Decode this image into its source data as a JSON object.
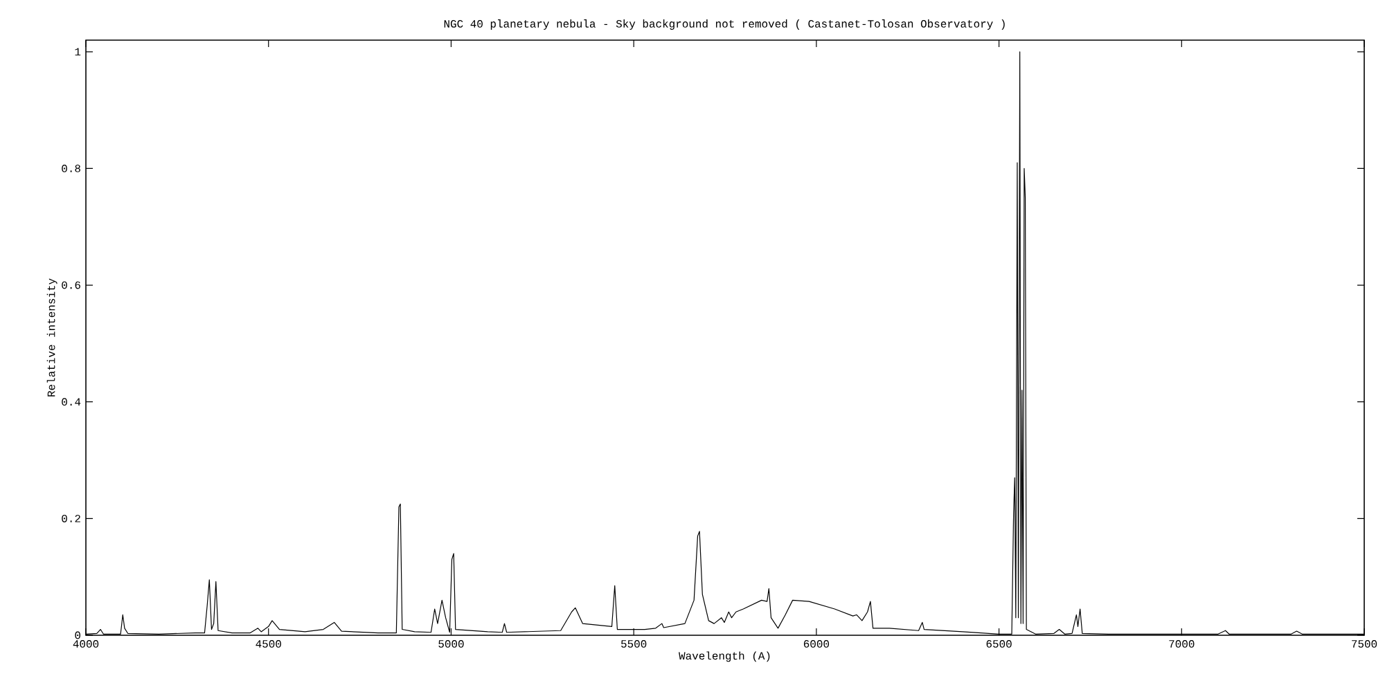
{
  "chart_data": {
    "type": "line",
    "title": "NGC 40 planetary nebula - Sky background not removed ( Castanet-Tolosan Observatory )",
    "xlabel": "Wavelength (A)",
    "ylabel": "Relative intensity",
    "xlim": [
      4000,
      7500
    ],
    "ylim": [
      0,
      1.02
    ],
    "xticks": [
      4000,
      4500,
      5000,
      5500,
      6000,
      6500,
      7000,
      7500
    ],
    "yticks": [
      0,
      0.2,
      0.4,
      0.6,
      0.8,
      1
    ],
    "grid": false,
    "legend": false,
    "marker": "none",
    "line_style": "solid",
    "series": [
      {
        "color": "#000000",
        "x": [
          4000,
          4030,
          4040,
          4048,
          4095,
          4101,
          4106,
          4115,
          4200,
          4300,
          4325,
          4332,
          4338,
          4344,
          4350,
          4356,
          4362,
          4400,
          4450,
          4471,
          4480,
          4500,
          4510,
          4530,
          4600,
          4650,
          4680,
          4700,
          4800,
          4850,
          4857,
          4861,
          4866,
          4900,
          4945,
          4955,
          4963,
          4975,
          4985,
          4996,
          5002,
          5007,
          5012,
          5100,
          5140,
          5146,
          5152,
          5300,
          5330,
          5340,
          5360,
          5440,
          5448,
          5455,
          5530,
          5560,
          5577,
          5582,
          5640,
          5665,
          5675,
          5680,
          5688,
          5705,
          5720,
          5740,
          5748,
          5760,
          5768,
          5780,
          5800,
          5850,
          5865,
          5870,
          5876,
          5895,
          5915,
          5935,
          5980,
          6050,
          6100,
          6110,
          6125,
          6140,
          6148,
          6155,
          6200,
          6280,
          6290,
          6295,
          6400,
          6500,
          6535,
          6540,
          6543,
          6546,
          6550,
          6553,
          6557,
          6560,
          6563,
          6566,
          6569,
          6572,
          6575,
          6600,
          6650,
          6665,
          6680,
          6700,
          6712,
          6716,
          6722,
          6728,
          6800,
          7000,
          7100,
          7120,
          7130,
          7300,
          7315,
          7330,
          7500
        ],
        "values": [
          0.002,
          0.003,
          0.01,
          0.002,
          0.002,
          0.035,
          0.012,
          0.003,
          0.002,
          0.004,
          0.004,
          0.05,
          0.095,
          0.01,
          0.02,
          0.092,
          0.008,
          0.004,
          0.004,
          0.012,
          0.006,
          0.015,
          0.025,
          0.01,
          0.006,
          0.01,
          0.022,
          0.007,
          0.004,
          0.004,
          0.22,
          0.225,
          0.01,
          0.006,
          0.005,
          0.045,
          0.02,
          0.06,
          0.03,
          0.005,
          0.13,
          0.14,
          0.01,
          0.006,
          0.005,
          0.02,
          0.005,
          0.008,
          0.04,
          0.047,
          0.02,
          0.015,
          0.085,
          0.01,
          0.01,
          0.012,
          0.02,
          0.013,
          0.02,
          0.06,
          0.17,
          0.178,
          0.07,
          0.025,
          0.02,
          0.03,
          0.022,
          0.04,
          0.03,
          0.04,
          0.045,
          0.06,
          0.058,
          0.08,
          0.03,
          0.012,
          0.035,
          0.06,
          0.058,
          0.045,
          0.033,
          0.035,
          0.025,
          0.04,
          0.058,
          0.012,
          0.012,
          0.008,
          0.022,
          0.01,
          0.006,
          0.002,
          0.002,
          0.21,
          0.27,
          0.03,
          0.81,
          0.03,
          1.0,
          0.02,
          0.42,
          0.02,
          0.8,
          0.75,
          0.01,
          0.002,
          0.003,
          0.01,
          0.002,
          0.003,
          0.035,
          0.015,
          0.045,
          0.003,
          0.002,
          0.002,
          0.002,
          0.008,
          0.002,
          0.002,
          0.007,
          0.002,
          0.002
        ]
      }
    ]
  }
}
